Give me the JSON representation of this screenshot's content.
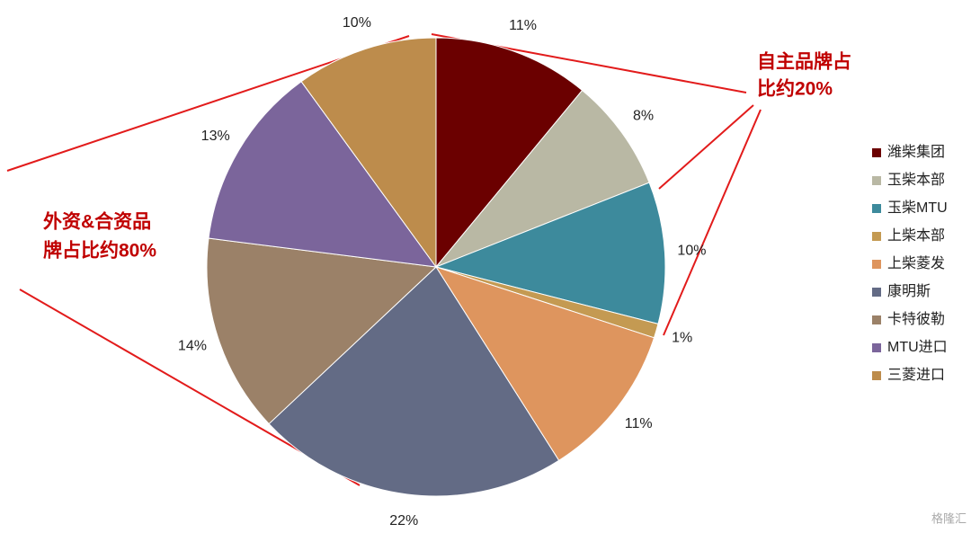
{
  "chart_data": {
    "type": "pie",
    "categories": [
      "潍柴集团",
      "玉柴本部",
      "玉柴MTU",
      "上柴本部",
      "上柴菱发",
      "康明斯",
      "卡特彼勒",
      "MTU进口",
      "三菱进口"
    ],
    "values": [
      11,
      8,
      10,
      1,
      11,
      22,
      14,
      13,
      10
    ],
    "value_labels": [
      "11%",
      "8%",
      "10%",
      "1%",
      "11%",
      "22%",
      "14%",
      "13%",
      "10%"
    ],
    "colors": [
      "#6b0000",
      "#b9b8a4",
      "#3d8a9c",
      "#c49a52",
      "#de955e",
      "#636b85",
      "#9b8168",
      "#7b659b",
      "#bd8c4c"
    ],
    "annotations": [
      {
        "lines": [
          "自主品牌占",
          "比约20%"
        ]
      },
      {
        "lines": [
          "外资&合资品",
          "牌占比约80%"
        ]
      }
    ],
    "watermark": "格隆汇"
  }
}
